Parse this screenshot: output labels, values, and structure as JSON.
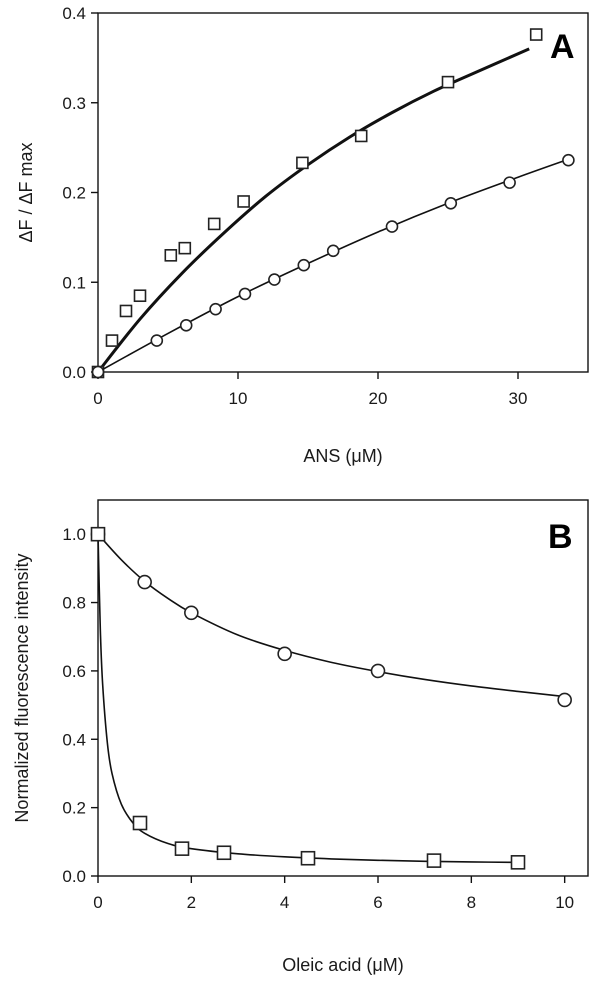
{
  "chart_data": [
    {
      "type": "scatter",
      "panel_label": "A",
      "xlabel": "ANS (μM)",
      "ylabel": "ΔF / ΔF max",
      "xlim": [
        0,
        35
      ],
      "ylim": [
        0,
        0.4
      ],
      "xticks": [
        0,
        10,
        20,
        30
      ],
      "yticks": [
        0.0,
        0.1,
        0.2,
        0.3,
        0.4
      ],
      "ytick_labels": [
        "0.0",
        "0.1",
        "0.2",
        "0.3",
        "0.4"
      ],
      "xtick_labels": [
        "0",
        "10",
        "20",
        "30"
      ],
      "grid": false,
      "series": [
        {
          "marker": "square",
          "line_weight": "thick",
          "x": [
            0,
            1,
            2,
            3,
            5.2,
            6.2,
            8.3,
            10.4,
            14.6,
            18.8,
            25,
            31.3
          ],
          "y": [
            0.0,
            0.035,
            0.068,
            0.085,
            0.13,
            0.138,
            0.165,
            0.19,
            0.233,
            0.263,
            0.323,
            0.376
          ],
          "fit": {
            "x": [
              0,
              3,
              6,
              9,
              12,
              15,
              18,
              21,
              24,
              27,
              30.8
            ],
            "y": [
              0.0,
              0.059,
              0.11,
              0.155,
              0.196,
              0.231,
              0.262,
              0.289,
              0.313,
              0.334,
              0.36
            ]
          }
        },
        {
          "marker": "circle",
          "line_weight": "thin",
          "x": [
            0,
            4.2,
            6.3,
            8.4,
            10.5,
            12.6,
            14.7,
            16.8,
            21,
            25.2,
            29.4,
            33.6
          ],
          "y": [
            0.0,
            0.035,
            0.052,
            0.07,
            0.087,
            0.103,
            0.119,
            0.135,
            0.162,
            0.188,
            0.211,
            0.236
          ],
          "fit": {
            "x": [
              0,
              5,
              10,
              15,
              20,
              25,
              30,
              33.6
            ],
            "y": [
              0.0,
              0.043,
              0.084,
              0.121,
              0.156,
              0.188,
              0.217,
              0.237
            ]
          }
        }
      ]
    },
    {
      "type": "scatter",
      "panel_label": "B",
      "xlabel": "Oleic acid (μM)",
      "ylabel": "Normalized fluorescence intensity",
      "xlim": [
        0,
        10.5
      ],
      "ylim": [
        0,
        1.1
      ],
      "xticks": [
        0,
        2,
        4,
        6,
        8,
        10
      ],
      "yticks": [
        0.0,
        0.2,
        0.4,
        0.6,
        0.8,
        1.0
      ],
      "ytick_labels": [
        "0.0",
        "0.2",
        "0.4",
        "0.6",
        "0.8",
        "1.0"
      ],
      "xtick_labels": [
        "0",
        "2",
        "4",
        "6",
        "8",
        "10"
      ],
      "grid": false,
      "series": [
        {
          "marker": "circle",
          "x": [
            0,
            1,
            2,
            4,
            6,
            10
          ],
          "y": [
            1.0,
            0.86,
            0.77,
            0.65,
            0.6,
            0.515
          ],
          "fit": {
            "x": [
              0,
              0.5,
              1,
              1.5,
              2,
              3,
              4,
              5,
              6,
              7,
              8,
              9,
              10
            ],
            "y": [
              1.0,
              0.925,
              0.862,
              0.812,
              0.77,
              0.705,
              0.66,
              0.625,
              0.598,
              0.575,
              0.556,
              0.54,
              0.525
            ]
          }
        },
        {
          "marker": "square",
          "x": [
            0,
            0.9,
            1.8,
            2.7,
            4.5,
            7.2,
            9.0
          ],
          "y": [
            1.0,
            0.155,
            0.08,
            0.068,
            0.052,
            0.045,
            0.04
          ],
          "fit": {
            "x": [
              0,
              0.05,
              0.1,
              0.2,
              0.3,
              0.5,
              0.75,
              1,
              1.5,
              2,
              3,
              4,
              5,
              6,
              7,
              8,
              9
            ],
            "y": [
              1.0,
              0.72,
              0.56,
              0.39,
              0.3,
              0.21,
              0.155,
              0.125,
              0.095,
              0.08,
              0.065,
              0.056,
              0.05,
              0.046,
              0.043,
              0.041,
              0.04
            ]
          }
        }
      ]
    }
  ]
}
